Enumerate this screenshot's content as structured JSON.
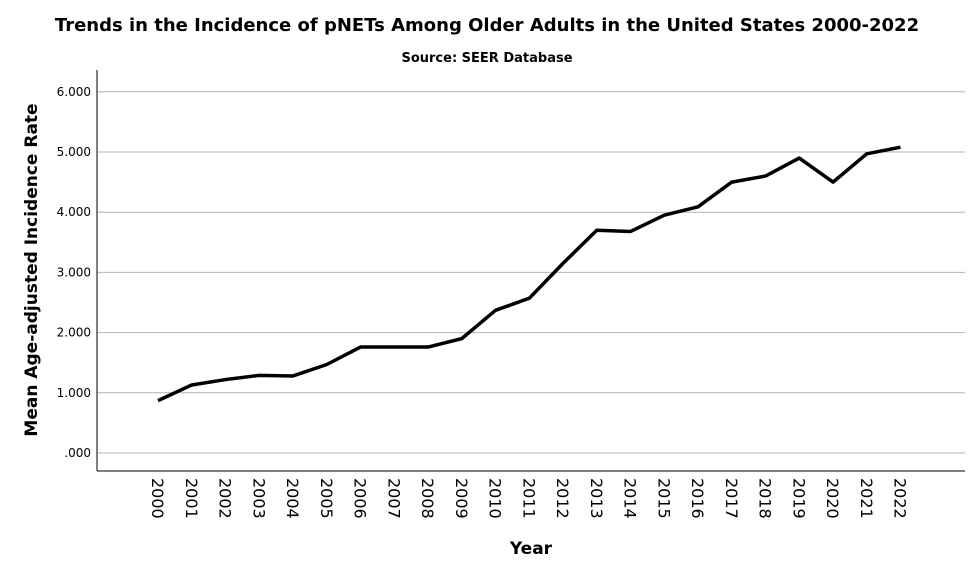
{
  "chart_data": {
    "type": "line",
    "title": "Trends in the Incidence of pNETs Among Older Adults in the United States 2000-2022",
    "subtitle": "Source: SEER Database",
    "xlabel": "Year",
    "ylabel": "Mean Age-adjusted Incidence Rate",
    "ylim": [
      0,
      6.3
    ],
    "yticks": [
      ".000",
      "1.000",
      "2.000",
      "3.000",
      "4.000",
      "5.000",
      "6.000"
    ],
    "grid": true,
    "categories": [
      "2000",
      "2001",
      "2002",
      "2003",
      "2004",
      "2005",
      "2006",
      "2007",
      "2008",
      "2009",
      "2010",
      "2011",
      "2012",
      "2013",
      "2014",
      "2015",
      "2016",
      "2017",
      "2018",
      "2019",
      "2020",
      "2021",
      "2022"
    ],
    "series": [
      {
        "values": [
          0.87,
          1.13,
          1.22,
          1.29,
          1.28,
          1.47,
          1.76,
          1.76,
          1.76,
          1.9,
          2.37,
          2.57,
          3.15,
          3.7,
          3.68,
          3.95,
          4.09,
          4.5,
          4.6,
          4.9,
          4.5,
          4.97,
          5.08
        ],
        "color": "#000000"
      }
    ]
  }
}
